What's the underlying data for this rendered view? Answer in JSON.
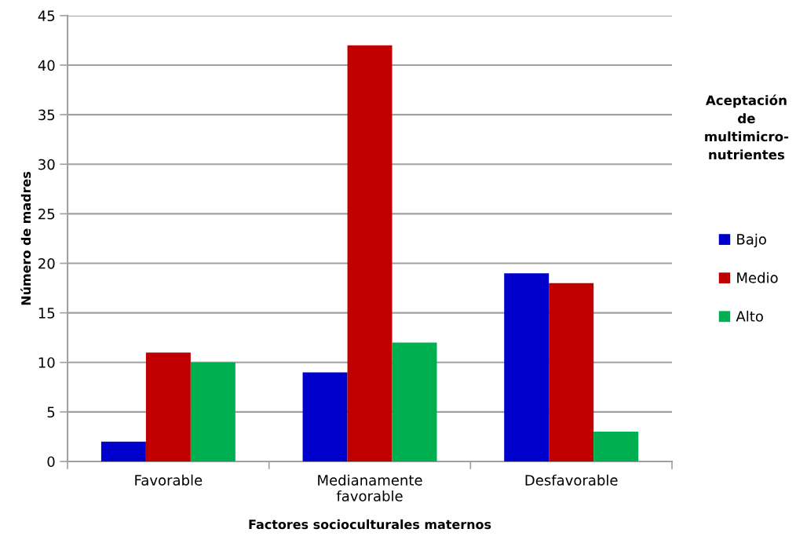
{
  "chart_data": {
    "type": "bar",
    "xlabel": "Factores socioculturales maternos",
    "ylabel": "Número de madres",
    "legend_title": "Aceptación\nde\nmultimicro-\nnutrientes",
    "categories": [
      "Favorable",
      "Medianamente\nfavorable",
      "Desfavorable"
    ],
    "series": [
      {
        "name": "Bajo",
        "color": "#0000cc",
        "values": [
          2,
          9,
          19
        ]
      },
      {
        "name": "Medio",
        "color": "#c00000",
        "values": [
          11,
          42,
          18
        ]
      },
      {
        "name": "Alto",
        "color": "#00b050",
        "values": [
          10,
          12,
          3
        ]
      }
    ],
    "ylim": [
      0,
      45
    ],
    "yticks": [
      0,
      5,
      10,
      15,
      20,
      25,
      30,
      35,
      40,
      45
    ],
    "grid": "y",
    "legend": "right"
  }
}
